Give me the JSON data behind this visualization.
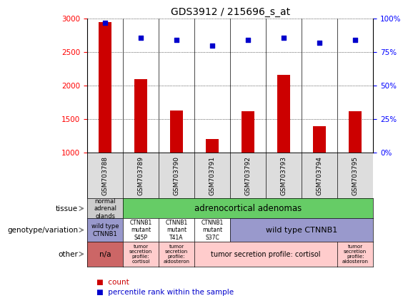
{
  "title": "GDS3912 / 215696_s_at",
  "samples": [
    "GSM703788",
    "GSM703789",
    "GSM703790",
    "GSM703791",
    "GSM703792",
    "GSM703793",
    "GSM703794",
    "GSM703795"
  ],
  "counts": [
    2950,
    2100,
    1630,
    1200,
    1620,
    2160,
    1390,
    1620
  ],
  "percentiles": [
    97,
    86,
    84,
    80,
    84,
    86,
    82,
    84
  ],
  "ylim_left": [
    1000,
    3000
  ],
  "ylim_right": [
    0,
    100
  ],
  "yticks_left": [
    1000,
    1500,
    2000,
    2500,
    3000
  ],
  "yticks_right": [
    0,
    25,
    50,
    75,
    100
  ],
  "bar_color": "#cc0000",
  "dot_color": "#0000cc",
  "sample_band_color": "#dddddd",
  "tissue_row": {
    "col0": {
      "text": "normal\nadrenal\nglands",
      "color": "#cccccc"
    },
    "col1to7": {
      "text": "adrenocortical adenomas",
      "color": "#66cc66"
    }
  },
  "genotype_row": {
    "col0": {
      "text": "wild type\nCTNNB1",
      "color": "#9999cc"
    },
    "col1": {
      "text": "CTNNB1\nmutant\nS45P",
      "color": "#ffffff"
    },
    "col2": {
      "text": "CTNNB1\nmutant\nT41A",
      "color": "#ffffff"
    },
    "col3": {
      "text": "CTNNB1\nmutant\nS37C",
      "color": "#ffffff"
    },
    "col4to7": {
      "text": "wild type CTNNB1",
      "color": "#9999cc"
    }
  },
  "other_row": {
    "col0": {
      "text": "n/a",
      "color": "#cc6666"
    },
    "col1": {
      "text": "tumor\nsecretion\nprofile:\ncortisol",
      "color": "#ffcccc"
    },
    "col2": {
      "text": "tumor\nsecretion\nprofile:\naldosteron",
      "color": "#ffcccc"
    },
    "col3to6": {
      "text": "tumor secretion profile: cortisol",
      "color": "#ffcccc"
    },
    "col7": {
      "text": "tumor\nsecretion\nprofile:\naldosteron",
      "color": "#ffcccc"
    }
  },
  "row_labels": [
    "tissue",
    "genotype/variation",
    "other"
  ],
  "legend_count_label": "count",
  "legend_pct_label": "percentile rank within the sample"
}
